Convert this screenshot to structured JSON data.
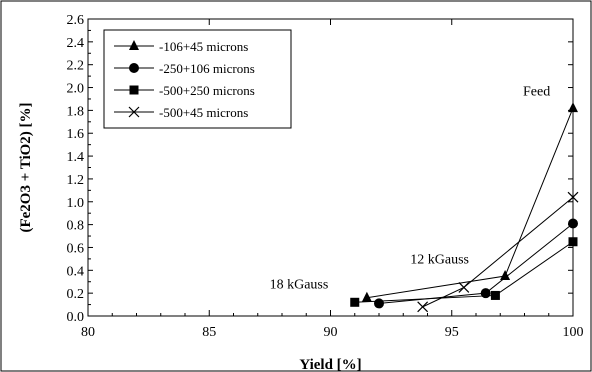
{
  "chart_data": {
    "type": "line",
    "xlabel": "Yield [%]",
    "ylabel": "(Fe2O3 + TiO2) [%]",
    "xlim": [
      80,
      100
    ],
    "ylim": [
      0,
      2.6
    ],
    "xticks": [
      "80",
      "85",
      "90",
      "95",
      "100"
    ],
    "yticks": [
      "0.0",
      "0.2",
      "0.4",
      "0.6",
      "0.8",
      "1.0",
      "1.2",
      "1.4",
      "1.6",
      "1.8",
      "2.0",
      "2.2",
      "2.4",
      "2.6"
    ],
    "legend_position": "top-left",
    "grid": false,
    "series": [
      {
        "name": "-106+45 microns",
        "marker": "triangle",
        "x": [
          91.5,
          97.2,
          100
        ],
        "y": [
          0.16,
          0.35,
          1.82
        ]
      },
      {
        "name": "-250+106 microns",
        "marker": "circle",
        "x": [
          92.0,
          96.4,
          100
        ],
        "y": [
          0.11,
          0.2,
          0.81
        ]
      },
      {
        "name": "-500+250 microns",
        "marker": "square",
        "x": [
          91.0,
          96.8,
          100
        ],
        "y": [
          0.12,
          0.18,
          0.65
        ]
      },
      {
        "name": "-500+45 microns",
        "marker": "cross",
        "x": [
          93.8,
          95.5,
          100
        ],
        "y": [
          0.08,
          0.25,
          1.04
        ]
      }
    ],
    "annotations": [
      {
        "text": "Feed",
        "x": 98.5,
        "y": 1.93
      },
      {
        "text": "12 kGauss",
        "x": 94.5,
        "y": 0.46
      },
      {
        "text": "18 kGauss",
        "x": 88.7,
        "y": 0.24
      }
    ]
  }
}
